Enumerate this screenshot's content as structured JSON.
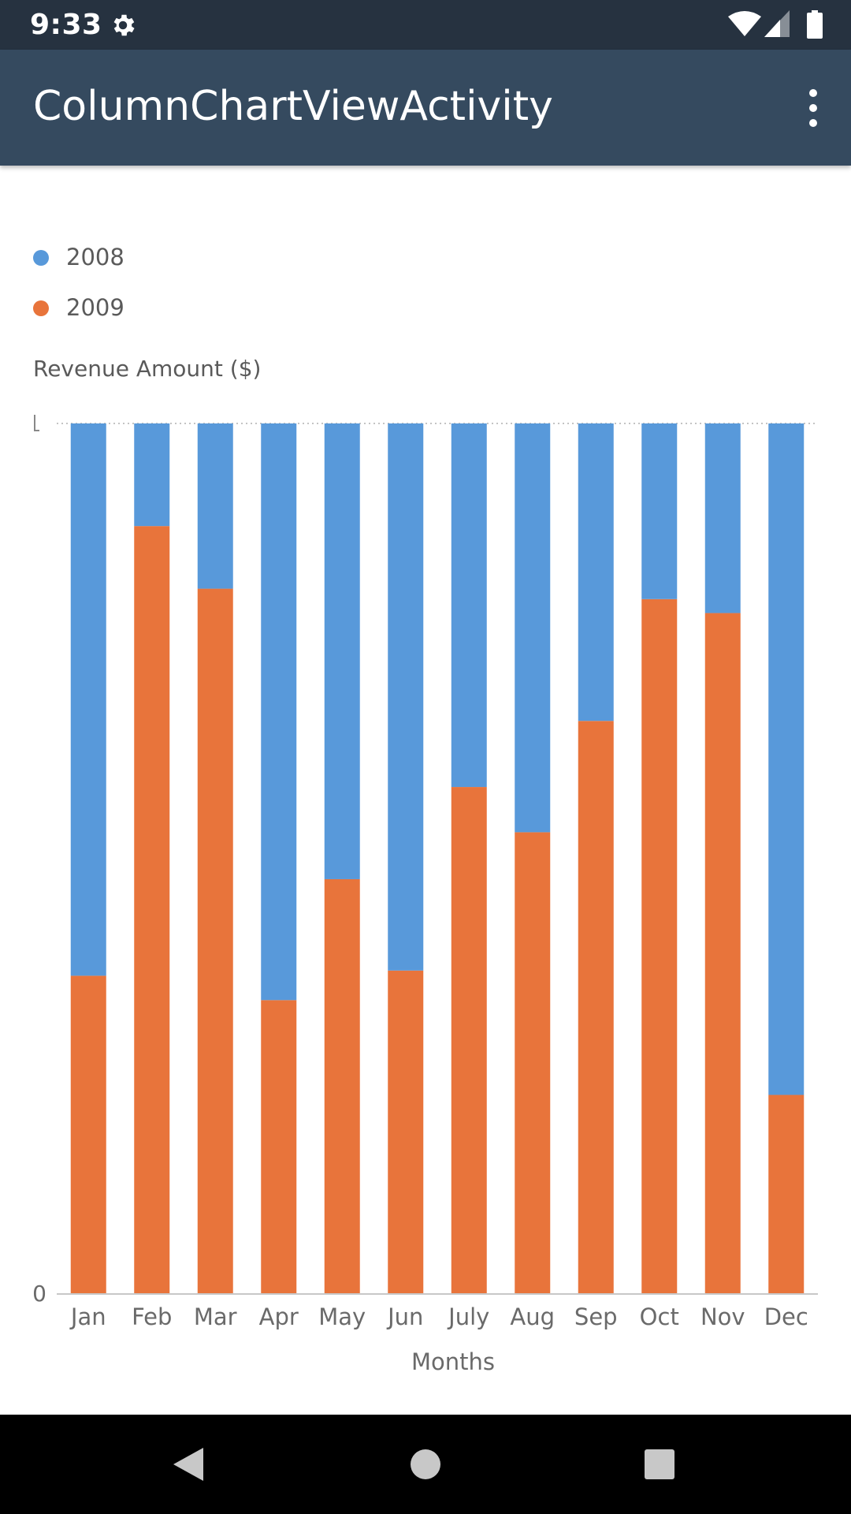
{
  "status_bar": {
    "time": "9:33",
    "settings_icon": "gear-icon",
    "wifi_icon": "wifi-icon",
    "signal_icon": "cell-signal-icon",
    "battery_icon": "battery-icon"
  },
  "app_bar": {
    "title": "ColumnChartViewActivity",
    "overflow_icon": "more-vert-icon"
  },
  "legend": [
    {
      "label": "2008",
      "color": "#5899da"
    },
    {
      "label": "2009",
      "color": "#e8743b"
    }
  ],
  "nav_bar": {
    "back_icon": "back-triangle-icon",
    "home_icon": "home-circle-icon",
    "recents_icon": "recents-square-icon"
  },
  "chart_data": {
    "type": "bar",
    "stacked": true,
    "normalized": true,
    "title": "",
    "xlabel": "Months",
    "ylabel": "Revenue Amount ($)",
    "y_tick_labels": [
      "0"
    ],
    "ylim": [
      0,
      1
    ],
    "categories": [
      "Jan",
      "Feb",
      "Mar",
      "Apr",
      "May",
      "Jun",
      "July",
      "Aug",
      "Sep",
      "Oct",
      "Nov",
      "Dec"
    ],
    "series": [
      {
        "name": "2009",
        "color": "#e8743b",
        "values": [
          0.365,
          0.882,
          0.81,
          0.337,
          0.476,
          0.371,
          0.582,
          0.53,
          0.658,
          0.798,
          0.782,
          0.228
        ]
      },
      {
        "name": "2008",
        "color": "#5899da",
        "values": [
          0.635,
          0.118,
          0.19,
          0.663,
          0.524,
          0.629,
          0.418,
          0.47,
          0.342,
          0.202,
          0.218,
          0.772
        ]
      }
    ],
    "grid": false,
    "legend_position": "top-left"
  }
}
